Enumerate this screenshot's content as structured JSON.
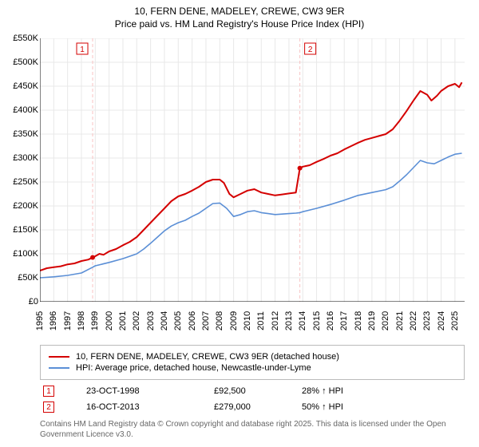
{
  "title_line1": "10, FERN DENE, MADELEY, CREWE, CW3 9ER",
  "title_line2": "Price paid vs. HM Land Registry's House Price Index (HPI)",
  "title_fontsize": 12,
  "chart": {
    "type": "line",
    "background_color": "#ffffff",
    "grid_color": "#e8e8e8",
    "axis_color": "#000000",
    "x": {
      "min": 1995,
      "max": 2025.7,
      "ticks": [
        1995,
        1996,
        1997,
        1998,
        1999,
        2000,
        2001,
        2002,
        2003,
        2004,
        2005,
        2006,
        2007,
        2008,
        2009,
        2010,
        2011,
        2012,
        2013,
        2014,
        2015,
        2016,
        2017,
        2018,
        2019,
        2020,
        2021,
        2022,
        2023,
        2024,
        2025
      ],
      "tick_fontsize": 11
    },
    "y": {
      "min": 0,
      "max": 550000,
      "ticks": [
        0,
        50000,
        100000,
        150000,
        200000,
        250000,
        300000,
        350000,
        400000,
        450000,
        500000,
        550000
      ],
      "tick_labels": [
        "£0",
        "£50K",
        "£100K",
        "£150K",
        "£200K",
        "£250K",
        "£300K",
        "£350K",
        "£400K",
        "£450K",
        "£500K",
        "£550K"
      ],
      "tick_fontsize": 11
    },
    "markers": [
      {
        "index": 1,
        "year": 1998.81,
        "date": "23-OCT-1998",
        "price": "£92,500",
        "hpi_diff": "28% ↑ HPI",
        "color": "#d40000"
      },
      {
        "index": 2,
        "year": 2013.79,
        "date": "16-OCT-2013",
        "price": "£279,000",
        "hpi_diff": "50% ↑ HPI",
        "color": "#d40000"
      }
    ],
    "marker_line_color": "#f8c4c4",
    "series": [
      {
        "key": "price_paid",
        "label": "10, FERN DENE, MADELEY, CREWE, CW3 9ER (detached house)",
        "color": "#d40000",
        "line_width": 2,
        "points": [
          [
            1995,
            65000
          ],
          [
            1995.5,
            70000
          ],
          [
            1996,
            72000
          ],
          [
            1996.5,
            74000
          ],
          [
            1997,
            78000
          ],
          [
            1997.5,
            80000
          ],
          [
            1998,
            85000
          ],
          [
            1998.5,
            88000
          ],
          [
            1998.81,
            92500
          ],
          [
            1999,
            95000
          ],
          [
            1999.3,
            100000
          ],
          [
            1999.6,
            98000
          ],
          [
            2000,
            105000
          ],
          [
            2000.5,
            110000
          ],
          [
            2001,
            118000
          ],
          [
            2001.5,
            125000
          ],
          [
            2002,
            135000
          ],
          [
            2002.5,
            150000
          ],
          [
            2003,
            165000
          ],
          [
            2003.5,
            180000
          ],
          [
            2004,
            195000
          ],
          [
            2004.5,
            210000
          ],
          [
            2005,
            220000
          ],
          [
            2005.5,
            225000
          ],
          [
            2006,
            232000
          ],
          [
            2006.5,
            240000
          ],
          [
            2007,
            250000
          ],
          [
            2007.5,
            255000
          ],
          [
            2008,
            255000
          ],
          [
            2008.3,
            248000
          ],
          [
            2008.7,
            225000
          ],
          [
            2009,
            218000
          ],
          [
            2009.5,
            225000
          ],
          [
            2010,
            232000
          ],
          [
            2010.5,
            235000
          ],
          [
            2011,
            228000
          ],
          [
            2011.5,
            225000
          ],
          [
            2012,
            222000
          ],
          [
            2012.5,
            224000
          ],
          [
            2013,
            226000
          ],
          [
            2013.5,
            228000
          ],
          [
            2013.79,
            279000
          ],
          [
            2014,
            282000
          ],
          [
            2014.5,
            285000
          ],
          [
            2015,
            292000
          ],
          [
            2015.5,
            298000
          ],
          [
            2016,
            305000
          ],
          [
            2016.5,
            310000
          ],
          [
            2017,
            318000
          ],
          [
            2017.5,
            325000
          ],
          [
            2018,
            332000
          ],
          [
            2018.5,
            338000
          ],
          [
            2019,
            342000
          ],
          [
            2019.5,
            346000
          ],
          [
            2020,
            350000
          ],
          [
            2020.5,
            360000
          ],
          [
            2021,
            378000
          ],
          [
            2021.5,
            398000
          ],
          [
            2022,
            420000
          ],
          [
            2022.5,
            440000
          ],
          [
            2023,
            432000
          ],
          [
            2023.3,
            420000
          ],
          [
            2023.7,
            430000
          ],
          [
            2024,
            440000
          ],
          [
            2024.5,
            450000
          ],
          [
            2025,
            455000
          ],
          [
            2025.3,
            448000
          ],
          [
            2025.5,
            458000
          ]
        ]
      },
      {
        "key": "hpi",
        "label": "HPI: Average price, detached house, Newcastle-under-Lyme",
        "color": "#5b8fd6",
        "line_width": 1.6,
        "points": [
          [
            1995,
            50000
          ],
          [
            1996,
            52000
          ],
          [
            1997,
            55000
          ],
          [
            1998,
            60000
          ],
          [
            1998.81,
            72000
          ],
          [
            1999,
            75000
          ],
          [
            2000,
            82000
          ],
          [
            2001,
            90000
          ],
          [
            2002,
            100000
          ],
          [
            2002.5,
            110000
          ],
          [
            2003,
            122000
          ],
          [
            2003.5,
            135000
          ],
          [
            2004,
            148000
          ],
          [
            2004.5,
            158000
          ],
          [
            2005,
            165000
          ],
          [
            2005.5,
            170000
          ],
          [
            2006,
            178000
          ],
          [
            2006.5,
            185000
          ],
          [
            2007,
            195000
          ],
          [
            2007.5,
            205000
          ],
          [
            2008,
            206000
          ],
          [
            2008.5,
            195000
          ],
          [
            2009,
            178000
          ],
          [
            2009.5,
            182000
          ],
          [
            2010,
            188000
          ],
          [
            2010.5,
            190000
          ],
          [
            2011,
            186000
          ],
          [
            2011.5,
            184000
          ],
          [
            2012,
            182000
          ],
          [
            2012.5,
            183000
          ],
          [
            2013,
            184000
          ],
          [
            2013.5,
            185000
          ],
          [
            2013.79,
            186000
          ],
          [
            2014,
            188000
          ],
          [
            2015,
            195000
          ],
          [
            2016,
            203000
          ],
          [
            2017,
            212000
          ],
          [
            2018,
            222000
          ],
          [
            2019,
            228000
          ],
          [
            2020,
            234000
          ],
          [
            2020.5,
            240000
          ],
          [
            2021,
            252000
          ],
          [
            2021.5,
            265000
          ],
          [
            2022,
            280000
          ],
          [
            2022.5,
            295000
          ],
          [
            2023,
            290000
          ],
          [
            2023.5,
            288000
          ],
          [
            2024,
            295000
          ],
          [
            2024.5,
            302000
          ],
          [
            2025,
            308000
          ],
          [
            2025.5,
            310000
          ]
        ]
      }
    ]
  },
  "legend": {
    "border_color": "#bbbbbb",
    "items": [
      {
        "color": "#d40000",
        "label": "10, FERN DENE, MADELEY, CREWE, CW3 9ER (detached house)"
      },
      {
        "color": "#5b8fd6",
        "label": "HPI: Average price, detached house, Newcastle-under-Lyme"
      }
    ]
  },
  "footer": "Contains HM Land Registry data © Crown copyright and database right 2025. This data is licensed under the Open Government Licence v3.0."
}
